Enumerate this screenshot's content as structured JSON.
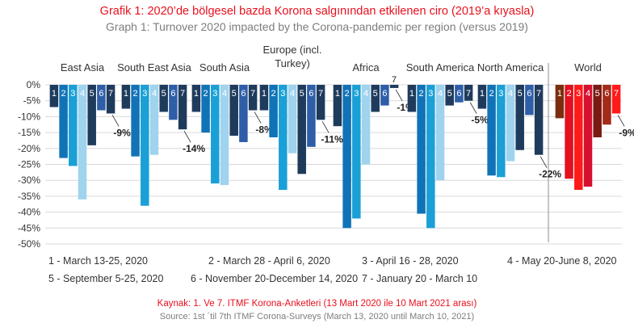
{
  "title_tr": "Grafik 1: 2020’de bölgesel bazda Korona salgınından etkilenen ciro (2019’a kıyasla)",
  "title_en": "Graph 1: Turnover 2020 impacted by the Corona-pandemic per region (versus 2019)",
  "legend": [
    "1 - March 13-25, 2020",
    "2 - March 28 - April 6, 2020",
    "3 - April 16 - 28, 2020",
    "4 - May 20-June 8, 2020",
    "5 - September 5-25, 2020",
    "6 - November 20-December 14, 2020",
    "7 - January 20 - March 10"
  ],
  "source_tr": "Kaynak: 1. Ve 7.  ITMF Korona-Anketleri (13 Mart 2020 ile 10 Mart 2021 arası)",
  "source_en": "Source: 1st ´til 7th ITMF Corona-Surveys (March 13, 2020 until March 10, 2021)",
  "chart_data": {
    "type": "bar",
    "ylim": [
      -50,
      0
    ],
    "yticks": [
      "0%",
      "-5%",
      "-10%",
      "-15%",
      "-20%",
      "-25%",
      "-30%",
      "-35%",
      "-40%",
      "-45%",
      "-50%"
    ],
    "grid": true,
    "bar_labels": [
      "1",
      "2",
      "3",
      "4",
      "5",
      "6",
      "7"
    ],
    "colors": {
      "survey_blues": [
        "#1f3b5c",
        "#1173b7",
        "#1aa0d6",
        "#9fd3ee",
        "#1f3b5c",
        "#2e5ea8",
        "#1f3b5c"
      ],
      "world": [
        "#7a2e0e",
        "#e3101f",
        "#ff1a1a",
        "#d81030",
        "#7a1a12",
        "#a42a1a",
        "#ff1a1a"
      ],
      "label_text": "#1f1f1f"
    },
    "categories": [
      "East Asia",
      "South East Asia",
      "South Asia",
      "Europe (incl. Turkey)",
      "Africa",
      "South America",
      "North America",
      "World"
    ],
    "category_labels": [
      [
        "East Asia"
      ],
      [
        "South East Asia"
      ],
      [
        "South Asia"
      ],
      [
        "Europe (incl.",
        "Turkey)"
      ],
      [
        "Africa"
      ],
      [
        "South America"
      ],
      [
        "North America"
      ],
      [
        "World"
      ]
    ],
    "values": [
      [
        -7,
        -23,
        -25.5,
        -36,
        -19,
        -8,
        -9
      ],
      [
        -7.5,
        -22.5,
        -38,
        -22,
        -8.5,
        -11,
        -14
      ],
      [
        -8.5,
        -15,
        -31,
        -31.5,
        -16,
        -18,
        -8
      ],
      [
        -8,
        -16.5,
        -33,
        -21.5,
        -28,
        -19.5,
        -11
      ],
      [
        -13,
        -45,
        -42,
        -25,
        -8.5,
        -6.5,
        -1
      ],
      [
        -8.5,
        -40.5,
        -45,
        -30,
        -6.5,
        -5.5,
        -5
      ],
      [
        -7.5,
        -28.5,
        -29,
        -24,
        -20.5,
        -9.5,
        -22
      ]
    ],
    "world_values": [
      -10.5,
      -29.5,
      -33,
      -32,
      -16.5,
      -12.5,
      -9
    ],
    "value_labels": [
      "-9%",
      "-14%",
      "-8%",
      "-11%",
      "-1%",
      "-5%",
      "-22%",
      "-9%"
    ]
  }
}
